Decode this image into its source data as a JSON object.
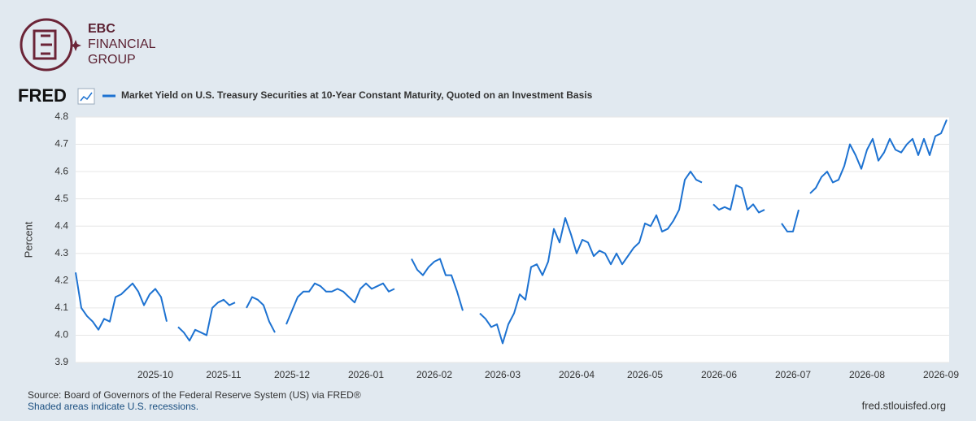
{
  "brand": {
    "lines": [
      "EBC",
      "FINANCIAL",
      "GROUP"
    ]
  },
  "fred_logo": "FRED",
  "footer": {
    "source": "Source: Board of Governors of the Federal Reserve System (US) via FRED®",
    "note": "Shaded areas indicate U.S. recessions.",
    "url": "fred.stlouisfed.org"
  },
  "chart_data": {
    "type": "line",
    "y_label": "Percent",
    "categories": [
      null,
      null,
      null,
      null,
      null,
      null,
      null,
      null,
      null,
      null,
      null,
      null,
      null,
      null,
      "2025-10",
      null,
      null,
      null,
      null,
      null,
      null,
      null,
      null,
      null,
      null,
      null,
      "2025-11",
      null,
      null,
      null,
      null,
      null,
      null,
      null,
      null,
      null,
      null,
      null,
      "2025-12",
      null,
      null,
      null,
      null,
      null,
      null,
      null,
      null,
      null,
      null,
      null,
      null,
      "2026-01",
      null,
      null,
      null,
      null,
      null,
      null,
      null,
      null,
      null,
      null,
      null,
      "2026-02",
      null,
      null,
      null,
      null,
      null,
      null,
      null,
      null,
      null,
      null,
      null,
      "2026-03",
      null,
      null,
      null,
      null,
      null,
      null,
      null,
      null,
      null,
      null,
      null,
      null,
      "2026-04",
      null,
      null,
      null,
      null,
      null,
      null,
      null,
      null,
      null,
      null,
      null,
      "2026-05",
      null,
      null,
      null,
      null,
      null,
      null,
      null,
      null,
      null,
      null,
      null,
      null,
      "2026-06",
      null,
      null,
      null,
      null,
      null,
      null,
      null,
      null,
      null,
      null,
      null,
      null,
      "2026-07",
      null,
      null,
      null,
      null,
      null,
      null,
      null,
      null,
      null,
      null,
      null,
      null,
      "2026-08",
      null,
      null,
      null,
      null,
      null,
      null,
      null,
      null,
      null,
      null,
      null,
      null,
      "2026-09",
      null
    ],
    "series": [
      {
        "name": "Market Yield on U.S. Treasury Securities at 10-Year Constant Maturity, Quoted on an Investment Basis",
        "color": "#1d72d1",
        "values": [
          4.23,
          4.1,
          4.07,
          4.05,
          4.02,
          4.06,
          4.05,
          4.14,
          4.15,
          4.17,
          4.19,
          4.16,
          4.11,
          4.15,
          4.17,
          4.14,
          4.05,
          null,
          4.03,
          4.01,
          3.98,
          4.02,
          4.01,
          4.0,
          4.1,
          4.12,
          4.13,
          4.11,
          4.12,
          null,
          4.1,
          4.14,
          4.13,
          4.11,
          4.05,
          4.01,
          null,
          4.04,
          4.09,
          4.14,
          4.16,
          4.16,
          4.19,
          4.18,
          4.16,
          4.16,
          4.17,
          4.16,
          4.14,
          4.12,
          4.17,
          4.19,
          4.17,
          4.18,
          4.19,
          4.16,
          4.17,
          null,
          null,
          4.28,
          4.24,
          4.22,
          4.25,
          4.27,
          4.28,
          4.22,
          4.22,
          4.16,
          4.09,
          null,
          null,
          4.08,
          4.06,
          4.03,
          4.04,
          3.97,
          4.04,
          4.08,
          4.15,
          4.13,
          4.25,
          4.26,
          4.22,
          4.27,
          4.39,
          4.34,
          4.43,
          4.37,
          4.3,
          4.35,
          4.34,
          4.29,
          4.31,
          4.3,
          4.26,
          4.3,
          4.26,
          4.29,
          4.32,
          4.34,
          4.41,
          4.4,
          4.44,
          4.38,
          4.39,
          4.42,
          4.46,
          4.57,
          4.6,
          4.57,
          4.56,
          null,
          4.48,
          4.46,
          4.47,
          4.46,
          4.55,
          4.54,
          4.46,
          4.48,
          4.45,
          4.46,
          null,
          null,
          4.41,
          4.38,
          4.38,
          4.46,
          null,
          4.52,
          4.54,
          4.58,
          4.6,
          4.56,
          4.57,
          4.62,
          4.7,
          4.66,
          4.61,
          4.68,
          4.72,
          4.64,
          4.67,
          4.72,
          4.68,
          4.67,
          4.7,
          4.72,
          4.66,
          4.72,
          4.66,
          4.73,
          4.74,
          4.79
        ]
      }
    ],
    "ylim": [
      3.9,
      4.8
    ],
    "yticks": [
      3.9,
      {
        "value": 4,
        "label": "4.0"
      },
      4.1,
      4.2,
      4.3,
      4.4,
      4.5,
      4.6,
      4.7,
      4.8
    ],
    "grid": true
  }
}
